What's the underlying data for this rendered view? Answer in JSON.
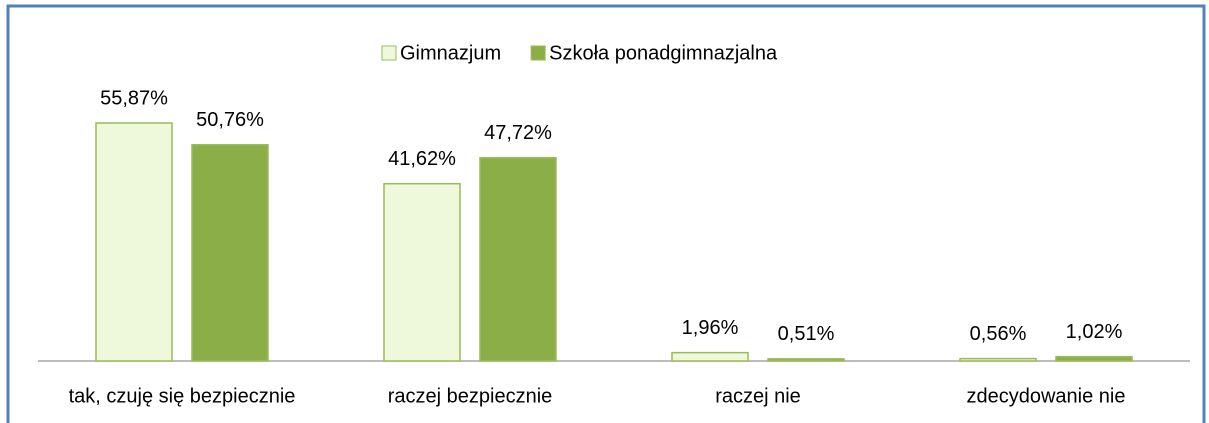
{
  "chart_data": {
    "type": "bar",
    "categories": [
      "tak, czuję się bezpiecznie",
      "raczej bezpiecznie",
      "raczej nie",
      "zdecydowanie nie"
    ],
    "series": [
      {
        "name": "Gimnazjum",
        "color": "#eef9dc",
        "values": [
          55.87,
          41.62,
          1.96,
          0.56
        ],
        "value_labels": [
          "55,87%",
          "41,62%",
          "1,96%",
          "0,56%"
        ]
      },
      {
        "name": "Szkoła ponadgimnazjalna",
        "color": "#8cae48",
        "values": [
          50.76,
          47.72,
          0.51,
          1.02
        ],
        "value_labels": [
          "50,76%",
          "47,72%",
          "0,51%",
          "1,02%"
        ]
      }
    ],
    "legend": "top"
  }
}
